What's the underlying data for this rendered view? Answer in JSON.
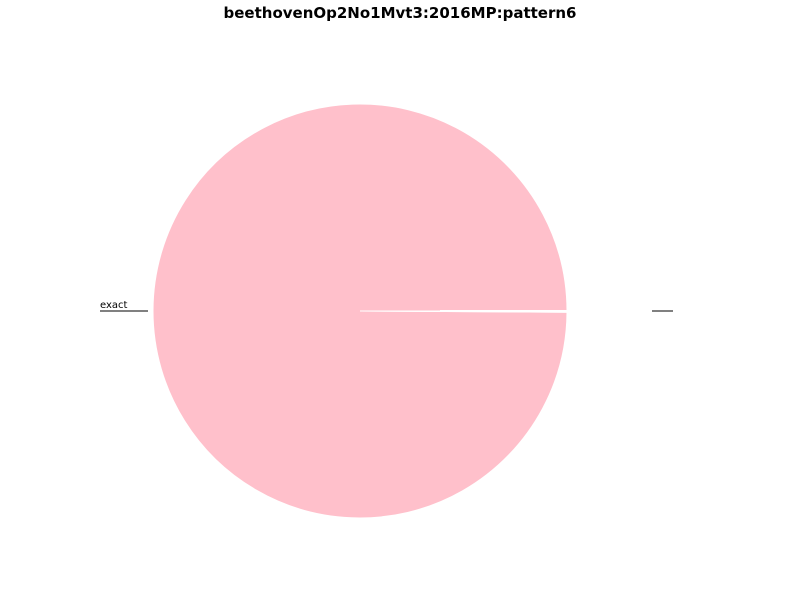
{
  "chart_data": {
    "type": "pie",
    "title": "beethovenOp2No1Mvt3:2016MP:pattern6",
    "slices": [
      {
        "label": "exact",
        "value": 0.999,
        "color": "#ffc0cb"
      },
      {
        "label": "",
        "value": 0.001,
        "color": "#ffc0cb"
      }
    ],
    "edge_color": "#ffffff",
    "start_angle_deg": 0,
    "legend": "none"
  }
}
